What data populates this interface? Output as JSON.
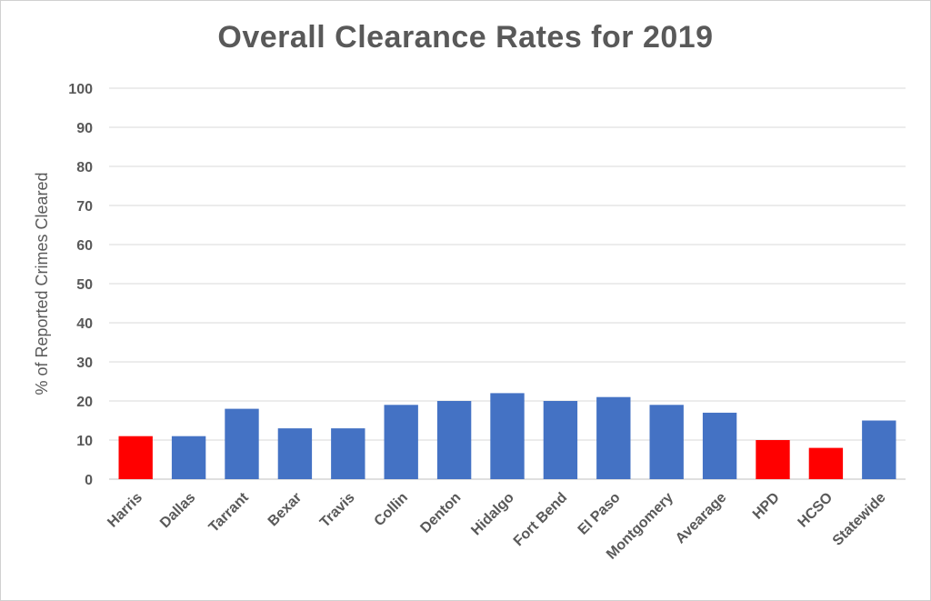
{
  "chart_data": {
    "type": "bar",
    "title": "Overall Clearance Rates for 2019",
    "ylabel": "% of Reported Crimes Cleared",
    "xlabel": "",
    "ylim": [
      0,
      100
    ],
    "yticks": [
      0,
      10,
      20,
      30,
      40,
      50,
      60,
      70,
      80,
      90,
      100
    ],
    "grid": true,
    "categories": [
      "Harris",
      "Dallas",
      "Tarrant",
      "Bexar",
      "Travis",
      "Collin",
      "Denton",
      "Hidalgo",
      "Fort Bend",
      "El Paso",
      "Montgomery",
      "Avearage",
      "HPD",
      "HCSO",
      "Statewide"
    ],
    "values": [
      11,
      11,
      18,
      13,
      13,
      19,
      20,
      22,
      20,
      21,
      19,
      17,
      10,
      8,
      15
    ],
    "bar_colors": [
      "#ff0000",
      "#4472c4",
      "#4472c4",
      "#4472c4",
      "#4472c4",
      "#4472c4",
      "#4472c4",
      "#4472c4",
      "#4472c4",
      "#4472c4",
      "#4472c4",
      "#4472c4",
      "#ff0000",
      "#ff0000",
      "#4472c4"
    ]
  }
}
